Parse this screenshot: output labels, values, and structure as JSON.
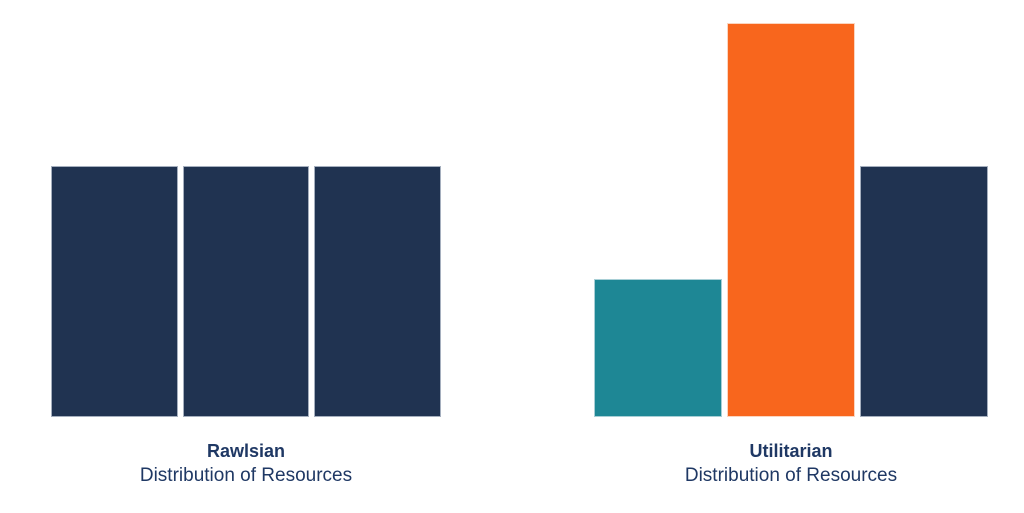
{
  "page": {
    "background_color": "#FFFFFF",
    "text_color": "#1F3864"
  },
  "chart_data": [
    {
      "type": "bar",
      "title": "Rawlsian",
      "subtitle": "Distribution of Resources",
      "values": [
        251,
        251,
        251
      ],
      "values_unit": "relative-pixel-height",
      "bar_colors": [
        "#203351",
        "#203351",
        "#203351"
      ],
      "bar_border_colors": [
        "#A5AFBE",
        "#A5AFBE",
        "#A5AFBE"
      ],
      "xlabel": "",
      "ylabel": "",
      "axes_visible": false,
      "grid": false,
      "legend": false
    },
    {
      "type": "bar",
      "title": "Utilitarian",
      "subtitle": "Distribution of Resources",
      "values": [
        138,
        394,
        251
      ],
      "values_unit": "relative-pixel-height",
      "bar_colors": [
        "#1E8795",
        "#F8661D",
        "#203351"
      ],
      "bar_border_colors": [
        "#A8CFD6",
        "#FBD5C0",
        "#A5AFBE"
      ],
      "xlabel": "",
      "ylabel": "",
      "axes_visible": false,
      "grid": false,
      "legend": false
    }
  ]
}
